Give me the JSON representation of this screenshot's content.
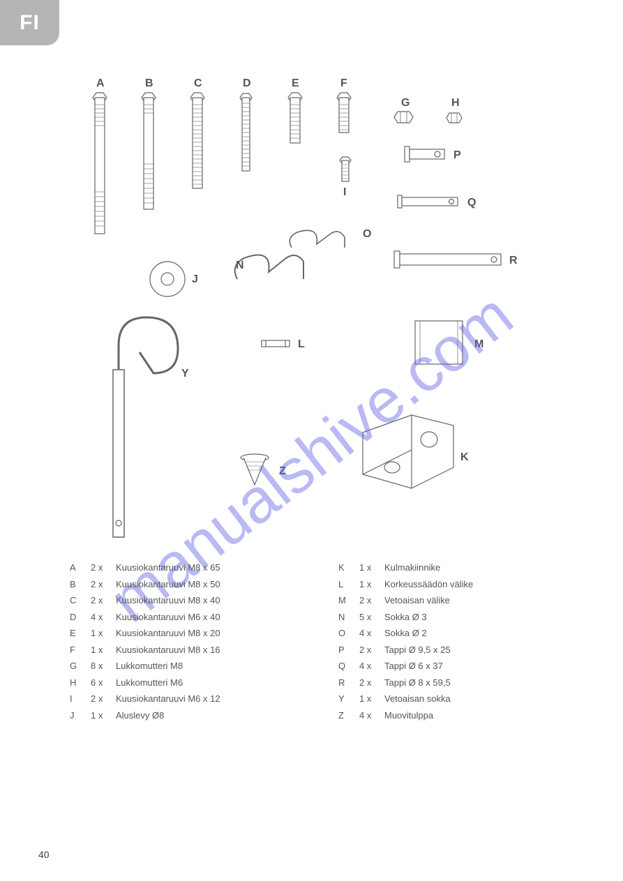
{
  "langTab": "FI",
  "pageNumber": "40",
  "watermark": "manualshive.com",
  "diagramLabels": {
    "A": "A",
    "B": "B",
    "C": "C",
    "D": "D",
    "E": "E",
    "F": "F",
    "G": "G",
    "H": "H",
    "I": "I",
    "J": "J",
    "K": "K",
    "L": "L",
    "M": "M",
    "N": "N",
    "O": "O",
    "P": "P",
    "Q": "Q",
    "R": "R",
    "Y": "Y",
    "Z": "Z"
  },
  "partsLeft": [
    {
      "letter": "A",
      "qty": "2 x",
      "name": "Kuusiokantaruuvi M8 x 65"
    },
    {
      "letter": "B",
      "qty": "2 x",
      "name": "Kuusiokantaruuvi M8 x 50"
    },
    {
      "letter": "C",
      "qty": "2 x",
      "name": "Kuusiokantaruuvi M8 x 40"
    },
    {
      "letter": "D",
      "qty": "4 x",
      "name": "Kuusiokantaruuvi M6 x 40"
    },
    {
      "letter": "E",
      "qty": "1 x",
      "name": "Kuusiokantaruuvi M8 x 20"
    },
    {
      "letter": "F",
      "qty": "1 x",
      "name": "Kuusiokantaruuvi M8 x 16"
    },
    {
      "letter": "G",
      "qty": "8 x",
      "name": "Lukkomutteri M8"
    },
    {
      "letter": "H",
      "qty": "6 x",
      "name": "Lukkomutteri M6"
    },
    {
      "letter": "I",
      "qty": "2 x",
      "name": "Kuusiokantaruuvi M6 x 12"
    },
    {
      "letter": "J",
      "qty": "1 x",
      "name": "Aluslevy Ø8"
    }
  ],
  "partsRight": [
    {
      "letter": "K",
      "qty": "1 x",
      "name": "Kulmakiinnike"
    },
    {
      "letter": "L",
      "qty": "1 x",
      "name": "Korkeussäädön välike"
    },
    {
      "letter": "M",
      "qty": "2 x",
      "name": "Vetoaisan välike"
    },
    {
      "letter": "N",
      "qty": "5 x",
      "name": "Sokka Ø 3"
    },
    {
      "letter": "O",
      "qty": "4 x",
      "name": "Sokka Ø 2"
    },
    {
      "letter": "P",
      "qty": "2 x",
      "name": "Tappi Ø 9,5 x 25"
    },
    {
      "letter": "Q",
      "qty": "4 x",
      "name": "Tappi Ø 6 x 37"
    },
    {
      "letter": "R",
      "qty": "2 x",
      "name": "Tappi Ø 8 x 59,5"
    },
    {
      "letter": "Y",
      "qty": "1 x",
      "name": "Vetoaisan sokka"
    },
    {
      "letter": "Z",
      "qty": "4 x",
      "name": "Muovitulppa"
    }
  ],
  "style": {
    "labelFont": "bold 16px Arial",
    "labelColor": "#555",
    "strokeColor": "#666",
    "fillColor": "#fff"
  }
}
